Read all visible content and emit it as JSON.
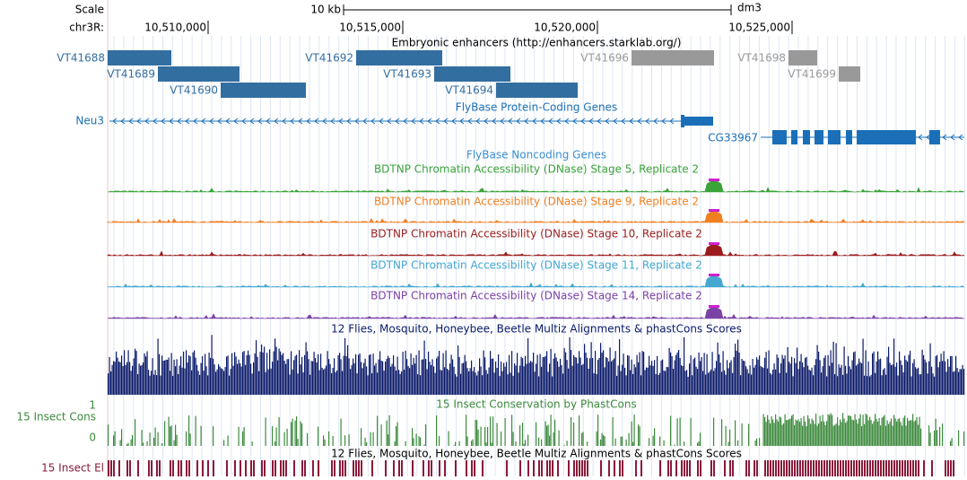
{
  "header": {
    "scale_label": "Scale",
    "scale_bar": "10 kb",
    "assembly": "dm3",
    "chrom": "chr3R:",
    "positions": [
      "10,510,000",
      "10,515,000",
      "10,520,000",
      "10,525,000"
    ]
  },
  "enhancers": {
    "title": "Embryonic enhancers (http://enhancers.starklab.org/)",
    "items": [
      "VT41688",
      "VT41689",
      "VT41690",
      "VT41692",
      "VT41693",
      "VT41694",
      "VT41696",
      "VT41698",
      "VT41699"
    ]
  },
  "genes": {
    "title": "FlyBase Protein-Coding Genes",
    "left_gene": "Neu3",
    "right_gene": "CG33967",
    "noncoding_title": "FlyBase Noncoding Genes"
  },
  "dnase": [
    "BDTNP Chromatin Accessibility (DNase) Stage 5, Replicate 2",
    "BDTNP Chromatin Accessibility (DNase) Stage 9, Replicate 2",
    "BDTNP Chromatin Accessibility (DNase) Stage 10, Replicate 2",
    "BDTNP Chromatin Accessibility (DNase) Stage 11, Replicate 2",
    "BDTNP Chromatin Accessibility (DNase) Stage 14, Replicate 2"
  ],
  "conservation": {
    "multiz_title": "12 Flies, Mosquito, Honeybee, Beetle Multiz Alignments & phastCons Scores",
    "phastcons_title": "15 Insect Conservation by PhastCons",
    "cons_label": "15 Insect Cons",
    "axis_top": "1",
    "axis_bottom": "0",
    "elements_title": "12 Flies, Mosquito, Honeybee, Beetle Multiz Alignments & phastCons Scores",
    "elements_label": "15 Insect El"
  }
}
